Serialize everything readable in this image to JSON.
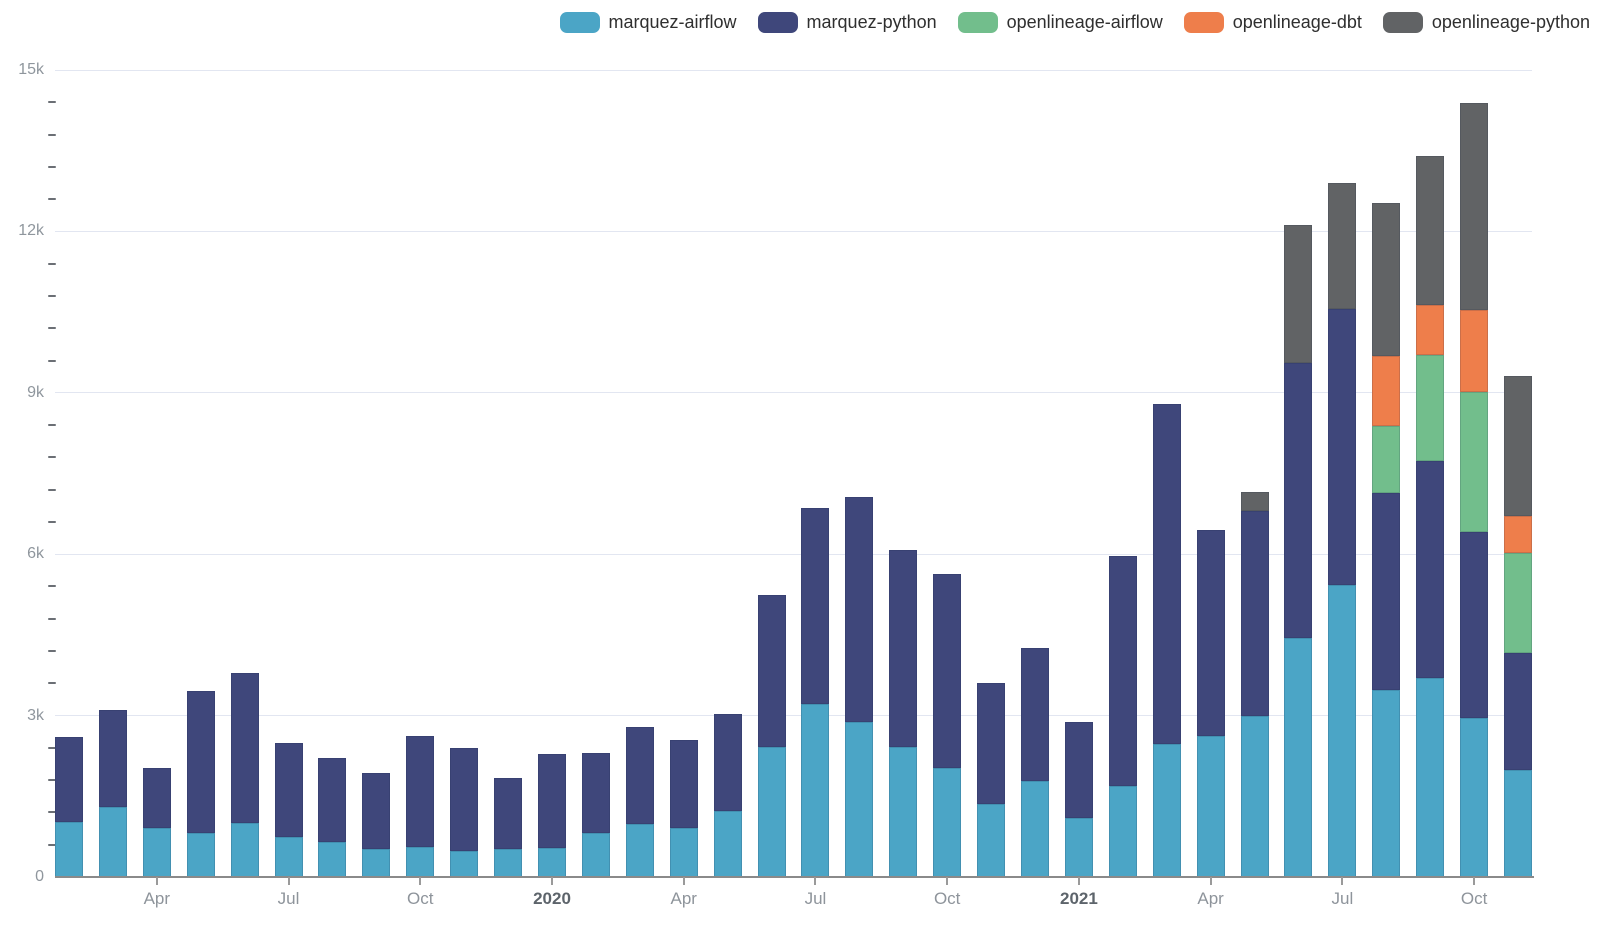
{
  "chart_data": {
    "type": "bar",
    "stacked": true,
    "title": "",
    "xlabel": "",
    "ylabel": "",
    "ylim": [
      0,
      15000
    ],
    "grid": true,
    "legend_position": "top-right",
    "x": [
      "Feb 2019",
      "Mar 2019",
      "Apr 2019",
      "May 2019",
      "Jun 2019",
      "Jul 2019",
      "Aug 2019",
      "Sep 2019",
      "Oct 2019",
      "Nov 2019",
      "Dec 2019",
      "Jan 2020",
      "Feb 2020",
      "Mar 2020",
      "Apr 2020",
      "May 2020",
      "Jun 2020",
      "Jul 2020",
      "Aug 2020",
      "Sep 2020",
      "Oct 2020",
      "Nov 2020",
      "Dec 2020",
      "Jan 2021",
      "Feb 2021",
      "Mar 2021",
      "Apr 2021",
      "May 2021",
      "Jun 2021",
      "Jul 2021",
      "Aug 2021",
      "Sep 2021",
      "Oct 2021",
      "Nov 2021"
    ],
    "series": [
      {
        "name": "marquez-airflow",
        "color": "#4ba5c6",
        "values": [
          1020,
          1300,
          910,
          820,
          1000,
          745,
          650,
          520,
          560,
          490,
          520,
          535,
          810,
          990,
          910,
          1230,
          2410,
          3210,
          2890,
          2410,
          2030,
          1360,
          1780,
          1090,
          1690,
          2470,
          2630,
          3000,
          4440,
          5430,
          3480,
          3705,
          2950,
          1990
        ]
      },
      {
        "name": "marquez-python",
        "color": "#3f477b",
        "values": [
          1580,
          1805,
          1120,
          2640,
          2790,
          1745,
          1565,
          1415,
          2060,
          1915,
          1325,
          1750,
          1500,
          1805,
          1635,
          1795,
          2835,
          3655,
          4180,
          3670,
          3600,
          2240,
          2485,
          1790,
          4280,
          6320,
          3825,
          3805,
          5110,
          5125,
          3660,
          4035,
          3455,
          2180
        ]
      },
      {
        "name": "openlineage-airflow",
        "color": "#72be8c",
        "values": [
          0,
          0,
          0,
          0,
          0,
          0,
          0,
          0,
          0,
          0,
          0,
          0,
          0,
          0,
          0,
          0,
          0,
          0,
          0,
          0,
          0,
          0,
          0,
          0,
          0,
          0,
          0,
          0,
          0,
          0,
          1250,
          1955,
          2610,
          1850
        ]
      },
      {
        "name": "openlineage-dbt",
        "color": "#ee7e4b",
        "values": [
          0,
          0,
          0,
          0,
          0,
          0,
          0,
          0,
          0,
          0,
          0,
          0,
          0,
          0,
          0,
          0,
          0,
          0,
          0,
          0,
          0,
          0,
          0,
          0,
          0,
          0,
          0,
          0,
          0,
          0,
          1285,
          945,
          1530,
          695
        ]
      },
      {
        "name": "openlineage-python",
        "color": "#616365",
        "values": [
          0,
          0,
          0,
          0,
          0,
          0,
          0,
          0,
          0,
          0,
          0,
          0,
          0,
          0,
          0,
          0,
          0,
          0,
          0,
          0,
          0,
          0,
          0,
          0,
          0,
          0,
          0,
          345,
          2570,
          2345,
          2855,
          2770,
          3840,
          2600
        ]
      }
    ],
    "y_ticks": [
      {
        "value": 0,
        "label": "0"
      },
      {
        "value": 3000,
        "label": "3k"
      },
      {
        "value": 6000,
        "label": "6k"
      },
      {
        "value": 9000,
        "label": "9k"
      },
      {
        "value": 12000,
        "label": "12k"
      },
      {
        "value": 15000,
        "label": "15k"
      }
    ],
    "y_minor_interval": 600,
    "x_ticks": [
      {
        "index": 2,
        "label": "Apr",
        "year": false
      },
      {
        "index": 5,
        "label": "Jul",
        "year": false
      },
      {
        "index": 8,
        "label": "Oct",
        "year": false
      },
      {
        "index": 11,
        "label": "2020",
        "year": true
      },
      {
        "index": 14,
        "label": "Apr",
        "year": false
      },
      {
        "index": 17,
        "label": "Jul",
        "year": false
      },
      {
        "index": 20,
        "label": "Oct",
        "year": false
      },
      {
        "index": 23,
        "label": "2021",
        "year": true
      },
      {
        "index": 26,
        "label": "Apr",
        "year": false
      },
      {
        "index": 29,
        "label": "Jul",
        "year": false
      },
      {
        "index": 32,
        "label": "Oct",
        "year": false
      }
    ]
  }
}
